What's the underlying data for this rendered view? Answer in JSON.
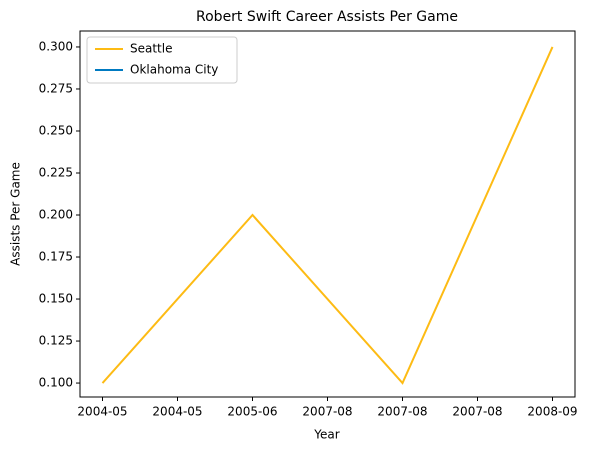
{
  "chart_data": {
    "type": "line",
    "title": "Robert Swift Career Assists Per Game",
    "x_label": "Year",
    "y_label": "Assists Per Game",
    "categories": [
      "2004-05",
      "2005-06",
      "2007-08",
      "2008-09"
    ],
    "series": [
      {
        "name": "Seattle",
        "color": "#fdbb14",
        "values": [
          0.1,
          0.2,
          0.1,
          0.3
        ]
      },
      {
        "name": "Oklahoma City",
        "color": "#007ac1",
        "values": [
          null,
          null,
          null,
          0.3
        ]
      }
    ],
    "xlim": [
      -0.15,
      3.15
    ],
    "xticks": [
      {
        "value": 0,
        "label": "2004-05"
      },
      {
        "value": 0.5,
        "label": "2004-05"
      },
      {
        "value": 1,
        "label": "2005-06"
      },
      {
        "value": 1.5,
        "label": "2007-08"
      },
      {
        "value": 2,
        "label": "2007-08"
      },
      {
        "value": 2.5,
        "label": "2007-08"
      },
      {
        "value": 3,
        "label": "2008-09"
      }
    ],
    "ylim": [
      0.0917,
      0.3095
    ],
    "yticks": [
      {
        "value": 0.1,
        "label": "0.100"
      },
      {
        "value": 0.125,
        "label": "0.125"
      },
      {
        "value": 0.15,
        "label": "0.150"
      },
      {
        "value": 0.175,
        "label": "0.175"
      },
      {
        "value": 0.2,
        "label": "0.200"
      },
      {
        "value": 0.225,
        "label": "0.225"
      },
      {
        "value": 0.25,
        "label": "0.250"
      },
      {
        "value": 0.275,
        "label": "0.275"
      },
      {
        "value": 0.3,
        "label": "0.300"
      }
    ],
    "legend": "upper left",
    "grid": false
  }
}
